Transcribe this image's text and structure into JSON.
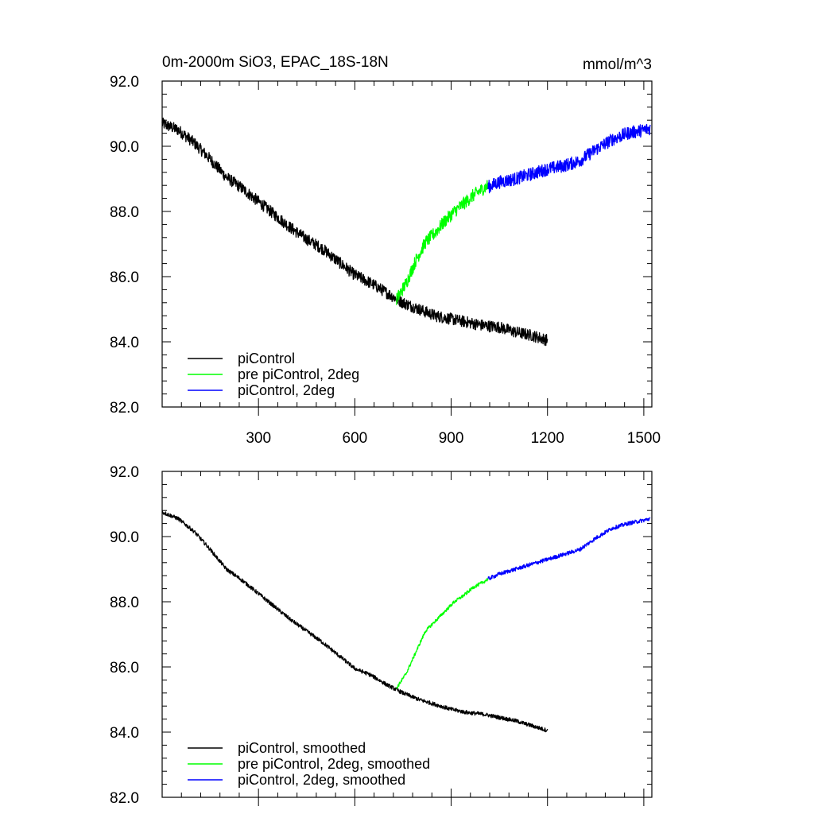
{
  "figure": {
    "title_left": "0m-2000m SiO3, EPAC_18S-18N",
    "title_right": "mmol/m^3"
  },
  "chart_data": [
    {
      "type": "line",
      "panel": "top",
      "xlim": [
        0,
        1525
      ],
      "ylim": [
        82,
        92
      ],
      "xticks": [
        300,
        600,
        900,
        1200,
        1500
      ],
      "xtick_labels": [
        "300",
        "600",
        "900",
        "1200",
        "1500"
      ],
      "yticks": [
        82,
        84,
        86,
        88,
        90,
        92
      ],
      "ytick_labels": [
        "82.0",
        "84.0",
        "86.0",
        "88.0",
        "90.0",
        "92.0"
      ],
      "legend_position": "bottom-left",
      "series": [
        {
          "name": "piControl",
          "color": "#000000",
          "x": [
            0,
            50,
            100,
            150,
            200,
            250,
            300,
            350,
            400,
            450,
            500,
            550,
            600,
            650,
            700,
            750,
            800,
            850,
            900,
            950,
            1000,
            1050,
            1100,
            1150,
            1200
          ],
          "y": [
            90.7,
            90.5,
            90.1,
            89.6,
            89.05,
            88.7,
            88.3,
            87.9,
            87.5,
            87.15,
            86.85,
            86.45,
            86.05,
            85.8,
            85.5,
            85.2,
            85.0,
            84.8,
            84.7,
            84.6,
            84.5,
            84.45,
            84.3,
            84.2,
            84.05
          ],
          "noise": 0.18
        },
        {
          "name": "pre piControl, 2deg",
          "color": "#00ff00",
          "x": [
            730,
            760,
            790,
            820,
            850,
            880,
            910,
            940,
            970,
            1000,
            1015
          ],
          "y": [
            85.3,
            85.8,
            86.5,
            87.05,
            87.35,
            87.7,
            88.0,
            88.25,
            88.5,
            88.7,
            88.8
          ],
          "noise": 0.2
        },
        {
          "name": "piControl, 2deg",
          "color": "#0000ff",
          "x": [
            1015,
            1050,
            1100,
            1150,
            1200,
            1250,
            1300,
            1350,
            1400,
            1450,
            1500,
            1520
          ],
          "y": [
            88.75,
            88.9,
            89.0,
            89.15,
            89.3,
            89.4,
            89.55,
            89.9,
            90.2,
            90.4,
            90.5,
            90.55
          ],
          "noise": 0.2
        }
      ]
    },
    {
      "type": "line",
      "panel": "bottom",
      "xlim": [
        0,
        1525
      ],
      "ylim": [
        82,
        92
      ],
      "yticks": [
        82,
        84,
        86,
        88,
        90,
        92
      ],
      "ytick_labels": [
        "82.0",
        "84.0",
        "86.0",
        "88.0",
        "90.0",
        "92.0"
      ],
      "legend_position": "bottom-left",
      "series": [
        {
          "name": "piControl, smoothed",
          "color": "#000000",
          "x": [
            0,
            50,
            100,
            150,
            200,
            250,
            300,
            350,
            400,
            450,
            500,
            550,
            600,
            650,
            700,
            750,
            800,
            850,
            900,
            950,
            1000,
            1050,
            1100,
            1150,
            1200
          ],
          "y": [
            90.75,
            90.55,
            90.15,
            89.6,
            89.0,
            88.65,
            88.25,
            87.85,
            87.45,
            87.1,
            86.75,
            86.35,
            85.95,
            85.75,
            85.45,
            85.2,
            85.0,
            84.85,
            84.7,
            84.6,
            84.55,
            84.45,
            84.35,
            84.2,
            84.05
          ],
          "noise": 0.06
        },
        {
          "name": "pre piControl, 2deg, smoothed",
          "color": "#00ff00",
          "x": [
            730,
            760,
            790,
            820,
            850,
            880,
            910,
            940,
            970,
            1000,
            1015
          ],
          "y": [
            85.35,
            85.8,
            86.45,
            87.1,
            87.4,
            87.7,
            88.0,
            88.2,
            88.45,
            88.6,
            88.7
          ],
          "noise": 0.05
        },
        {
          "name": "piControl, 2deg, smoothed",
          "color": "#0000ff",
          "x": [
            1015,
            1050,
            1100,
            1150,
            1200,
            1250,
            1300,
            1350,
            1400,
            1450,
            1500,
            1520
          ],
          "y": [
            88.7,
            88.85,
            89.0,
            89.15,
            89.3,
            89.45,
            89.6,
            89.95,
            90.25,
            90.4,
            90.5,
            90.55
          ],
          "noise": 0.06
        }
      ]
    }
  ]
}
